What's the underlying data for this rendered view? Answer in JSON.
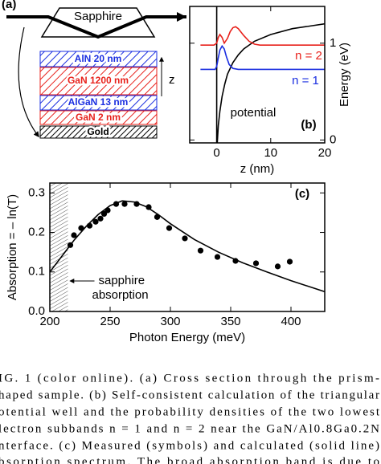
{
  "figure": {
    "panel_a": {
      "label": "(a)",
      "prism": "Sapphire",
      "layers": [
        "AlN 20 nm",
        "GaN 1200 nm",
        "AlGaN 13 nm",
        "GaN 2 nm",
        "Gold"
      ],
      "axis": "z"
    }
  },
  "chart_data": [
    {
      "type": "line",
      "panel_label": "(b)",
      "xlabel": "z (nm)",
      "ylabel": "Energy (eV)",
      "xlim": [
        -5,
        20
      ],
      "ylim": [
        -0.03,
        1.38
      ],
      "xticks": [
        0,
        10,
        20
      ],
      "yticks": [
        0,
        1
      ],
      "ytick_side": "right",
      "series": [
        {
          "name": "potential",
          "color": "#000000",
          "x": [
            0,
            0,
            0.1,
            0.3,
            0.6,
            1,
            1.5,
            2,
            3,
            4,
            5,
            7,
            10,
            14,
            20
          ],
          "values": [
            1.38,
            -0.03,
            -0.03,
            0.15,
            0.3,
            0.45,
            0.58,
            0.68,
            0.8,
            0.88,
            0.94,
            1.02,
            1.09,
            1.15,
            1.2
          ]
        },
        {
          "name": "n = 2",
          "color": "#e8211b",
          "x": [
            -3,
            -0.5,
            0,
            0.3,
            0.6,
            1,
            1.4,
            2,
            2.5,
            3,
            3.5,
            4,
            5,
            6,
            7,
            8,
            10,
            20
          ],
          "values": [
            0.98,
            0.98,
            1.0,
            1.06,
            1.09,
            1.06,
            1.0,
            1.05,
            1.12,
            1.16,
            1.17,
            1.15,
            1.08,
            1.02,
            0.99,
            0.98,
            0.98,
            0.98
          ]
        },
        {
          "name": "n = 1",
          "color": "#1a2ee0",
          "x": [
            -3,
            -0.3,
            0,
            0.3,
            0.6,
            1,
            1.4,
            1.8,
            2.3,
            3,
            4,
            20
          ],
          "values": [
            0.73,
            0.73,
            0.76,
            0.85,
            0.93,
            0.97,
            0.94,
            0.86,
            0.78,
            0.74,
            0.73,
            0.73
          ]
        }
      ]
    },
    {
      "type": "scatter",
      "panel_label": "(c)",
      "xlabel": "Photon Energy (meV)",
      "ylabel": "Absorption = – ln(T)",
      "xlim": [
        200,
        428
      ],
      "ylim": [
        0,
        0.325
      ],
      "xticks": [
        200,
        250,
        300,
        350,
        400
      ],
      "yticks": [
        {
          "value": 0,
          "label": "0.0"
        },
        0.1,
        0.2,
        0.3
      ],
      "shaded_xrange": [
        200,
        215
      ],
      "annotation": [
        "sapphire",
        "absorption"
      ],
      "series": [
        {
          "style": "markers",
          "color": "#000000",
          "x": [
            217,
            220,
            226,
            233,
            238,
            242,
            245,
            248,
            255,
            262,
            272,
            282,
            289,
            299,
            312,
            325,
            339,
            354,
            371,
            389,
            399
          ],
          "values": [
            0.168,
            0.193,
            0.211,
            0.217,
            0.227,
            0.235,
            0.247,
            0.256,
            0.272,
            0.272,
            0.272,
            0.264,
            0.239,
            0.211,
            0.185,
            0.154,
            0.138,
            0.128,
            0.122,
            0.114,
            0.126
          ]
        },
        {
          "style": "line",
          "color": "#000000",
          "x": [
            200,
            210,
            220,
            230,
            240,
            250,
            260,
            270,
            280,
            290,
            300,
            320,
            340,
            360,
            380,
            400,
            428
          ],
          "values": [
            0.1,
            0.14,
            0.18,
            0.215,
            0.245,
            0.268,
            0.28,
            0.277,
            0.265,
            0.245,
            0.222,
            0.182,
            0.15,
            0.123,
            0.1,
            0.078,
            0.05
          ]
        }
      ]
    }
  ],
  "caption": {
    "lines": [
      "IG. 1 (color online).   (a) Cross section through the prism-",
      "haped sample. (b) Self-consistent calculation of the triangular",
      "otential well and the probability densities of the two lowest",
      "lectron subbands n = 1 and n = 2 near the GaN/Al0.8Ga0.2N",
      "nterface. (c) Measured (symbols) and calculated (solid line)",
      "bsorption spectrum. The broad absorption band is due to"
    ]
  }
}
